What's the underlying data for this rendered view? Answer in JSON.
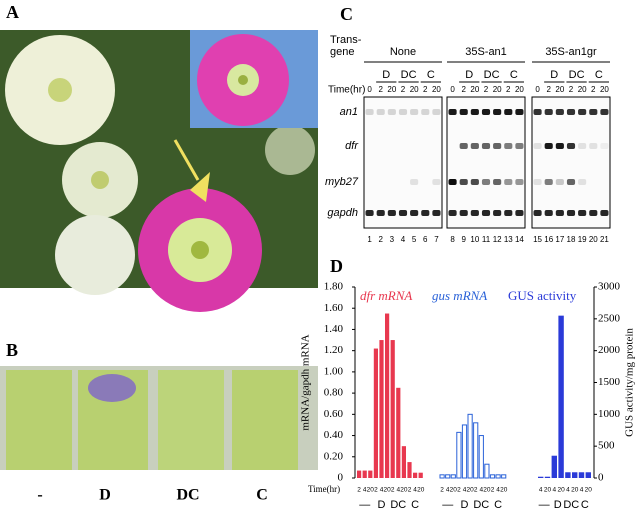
{
  "panels": {
    "A": {
      "letter": "A"
    },
    "B": {
      "letter": "B",
      "labels": [
        "-",
        "D",
        "DC",
        "C"
      ]
    },
    "C": {
      "letter": "C",
      "transgene_label": [
        "Trans-",
        "gene"
      ],
      "time_label": "Time(hr)",
      "groups": [
        {
          "name": "None",
          "treatments": [
            "D",
            "DC",
            "C"
          ],
          "times": [
            "0",
            "2",
            "20",
            "2",
            "20",
            "2",
            "20"
          ]
        },
        {
          "name": "35S-an1",
          "treatments": [
            "D",
            "DC",
            "C"
          ],
          "times": [
            "0",
            "2",
            "20",
            "2",
            "20",
            "2",
            "20"
          ]
        },
        {
          "name": "35S-an1gr",
          "treatments": [
            "D",
            "DC",
            "C"
          ],
          "times": [
            "0",
            "2",
            "20",
            "2",
            "20",
            "2",
            "20"
          ]
        }
      ],
      "rows": [
        "an1",
        "dfr",
        "myb27",
        "gapdh"
      ],
      "lanes": [
        1,
        2,
        3,
        4,
        5,
        6,
        7,
        8,
        9,
        10,
        11,
        12,
        13,
        14,
        15,
        16,
        17,
        18,
        19,
        20,
        21
      ]
    },
    "D": {
      "letter": "D"
    }
  },
  "chart_data": {
    "type": "bar",
    "y_label": "mRNA/gapdh mRNA",
    "y2_label": "GUS activity/mg protein",
    "x_label": "Time(hr)",
    "ylim": [
      0,
      1.8
    ],
    "yticks": [
      0,
      {
        "value": 0.2,
        "label": "0.20"
      },
      {
        "value": 0.4,
        "label": "0.40"
      },
      {
        "value": 0.6,
        "label": "0.60"
      },
      {
        "value": 0.8,
        "label": "0.80"
      },
      {
        "value": 1.0,
        "label": "1.00"
      },
      {
        "value": 1.2,
        "label": "1.20"
      },
      {
        "value": 1.4,
        "label": "1.40"
      },
      {
        "value": 1.6,
        "label": "1.60"
      },
      {
        "value": 1.8,
        "label": "1.80"
      }
    ],
    "y2lim": [
      0,
      3000
    ],
    "y2ticks": [
      0,
      500,
      1000,
      1500,
      2000,
      2500,
      3000
    ],
    "series": [
      {
        "name": "dfr mRNA",
        "color": "#e8384f",
        "fill": true,
        "categories": [
          "2",
          "4",
          "20",
          "2",
          "4",
          "20",
          "2",
          "4",
          "20",
          "2",
          "4",
          "20"
        ],
        "groups": [
          "—",
          "D",
          "DC",
          "C"
        ],
        "values": [
          0.07,
          0.07,
          0.07,
          1.22,
          1.3,
          1.55,
          1.3,
          0.85,
          0.3,
          0.15,
          0.05,
          0.05
        ]
      },
      {
        "name": "gus mRNA",
        "color": "#2a62d8",
        "fill": false,
        "categories": [
          "2",
          "4",
          "20",
          "2",
          "4",
          "20",
          "2",
          "4",
          "20",
          "2",
          "4",
          "20"
        ],
        "groups": [
          "—",
          "D",
          "DC",
          "C"
        ],
        "values": [
          0.03,
          0.03,
          0.03,
          0.43,
          0.5,
          0.6,
          0.52,
          0.4,
          0.13,
          0.03,
          0.03,
          0.03
        ]
      },
      {
        "name": "GUS activity",
        "color": "#2a3ad8",
        "fill": true,
        "axis": "y2",
        "categories": [
          "4",
          "20",
          "4",
          "20",
          "4",
          "20",
          "4",
          "20"
        ],
        "groups": [
          "—",
          "D",
          "DC",
          "C"
        ],
        "values": [
          20,
          20,
          350,
          2550,
          90,
          90,
          90,
          90
        ]
      }
    ]
  }
}
